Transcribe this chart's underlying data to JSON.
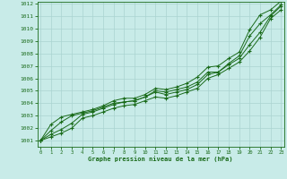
{
  "xlabel": "Graphe pression niveau de la mer (hPa)",
  "xlim": [
    0,
    23
  ],
  "ylim": [
    1001,
    1012
  ],
  "yticks": [
    1001,
    1002,
    1003,
    1004,
    1005,
    1006,
    1007,
    1008,
    1009,
    1010,
    1011,
    1012
  ],
  "xticks": [
    0,
    1,
    2,
    3,
    4,
    5,
    6,
    7,
    8,
    9,
    10,
    11,
    12,
    13,
    14,
    15,
    16,
    17,
    18,
    19,
    20,
    21,
    22,
    23
  ],
  "background_color": "#c8ebe8",
  "grid_color": "#aad4d0",
  "line_color": "#1a6b1a",
  "series": [
    [
      1001.0,
      1001.3,
      1001.6,
      1002.0,
      1002.8,
      1003.0,
      1003.3,
      1003.6,
      1003.8,
      1003.9,
      1004.2,
      1004.5,
      1004.4,
      1004.6,
      1004.9,
      1005.2,
      1006.0,
      1006.3,
      1006.8,
      1007.3,
      1008.2,
      1009.3,
      1010.8,
      1011.5
    ],
    [
      1001.0,
      1001.5,
      1001.9,
      1002.4,
      1003.1,
      1003.3,
      1003.6,
      1003.9,
      1004.1,
      1004.2,
      1004.5,
      1004.9,
      1004.7,
      1004.9,
      1005.1,
      1005.5,
      1006.3,
      1006.5,
      1007.1,
      1007.6,
      1008.7,
      1009.7,
      1011.0,
      1011.8
    ],
    [
      1001.0,
      1001.8,
      1002.5,
      1003.0,
      1003.2,
      1003.4,
      1003.7,
      1004.0,
      1004.1,
      1004.2,
      1004.5,
      1005.0,
      1004.9,
      1005.1,
      1005.3,
      1005.7,
      1006.5,
      1006.5,
      1007.2,
      1007.8,
      1009.4,
      1010.4,
      1011.1,
      1011.9
    ],
    [
      1001.0,
      1002.3,
      1002.9,
      1003.1,
      1003.3,
      1003.5,
      1003.8,
      1004.2,
      1004.4,
      1004.4,
      1004.7,
      1005.2,
      1005.1,
      1005.3,
      1005.6,
      1006.1,
      1006.9,
      1007.0,
      1007.6,
      1008.1,
      1009.9,
      1011.1,
      1011.5,
      1012.2
    ]
  ]
}
